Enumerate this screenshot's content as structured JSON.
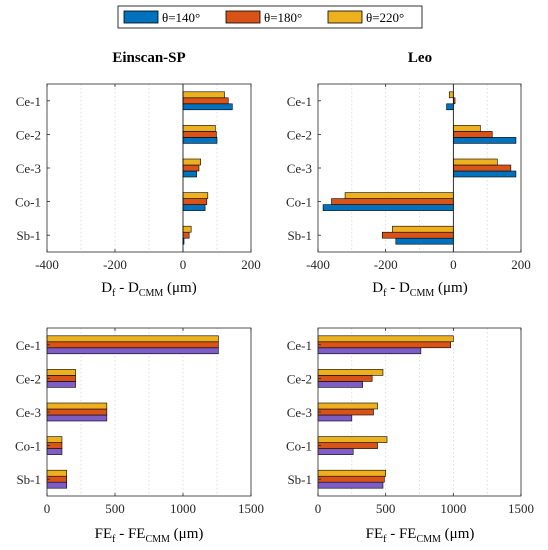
{
  "legend": {
    "items": [
      {
        "label": "θ=140°",
        "color": "#0072BD"
      },
      {
        "label": "θ=180°",
        "color": "#D95319"
      },
      {
        "label": "θ=220°",
        "color": "#EDB120"
      }
    ]
  },
  "colors": {
    "purple_series": "#7E5EC6"
  },
  "chart_data": [
    {
      "type": "bar",
      "orientation": "horizontal",
      "title": "Einscan-SP",
      "xlabel": {
        "main": "D",
        "sub1": "f",
        "mid": " - D",
        "sub2": "CMM",
        "unit": " (μm)"
      },
      "xlim": [
        -400,
        200
      ],
      "xticks": [
        -400,
        -200,
        0,
        200
      ],
      "grid": true,
      "categories": [
        "Ce-1",
        "Ce-2",
        "Ce-3",
        "Co-1",
        "Sb-1"
      ],
      "series": [
        {
          "name": "θ=140°",
          "values": [
            145,
            100,
            40,
            65,
            3
          ]
        },
        {
          "name": "θ=180°",
          "values": [
            133,
            98,
            47,
            70,
            18
          ]
        },
        {
          "name": "θ=220°",
          "values": [
            122,
            95,
            52,
            73,
            24
          ]
        }
      ]
    },
    {
      "type": "bar",
      "orientation": "horizontal",
      "title": "Leo",
      "xlabel": {
        "main": "D",
        "sub1": "f",
        "mid": " - D",
        "sub2": "CMM",
        "unit": " (μm)"
      },
      "xlim": [
        -400,
        200
      ],
      "xticks": [
        -400,
        -200,
        0,
        200
      ],
      "grid": true,
      "categories": [
        "Ce-1",
        "Ce-2",
        "Ce-3",
        "Co-1",
        "Sb-1"
      ],
      "series": [
        {
          "name": "θ=140°",
          "values": [
            -20,
            185,
            185,
            -385,
            -170
          ]
        },
        {
          "name": "θ=180°",
          "values": [
            5,
            115,
            170,
            -360,
            -210
          ]
        },
        {
          "name": "θ=220°",
          "values": [
            -12,
            80,
            130,
            -320,
            -180
          ]
        }
      ]
    },
    {
      "type": "bar",
      "orientation": "horizontal",
      "title": "",
      "xlabel": {
        "main": "FE",
        "sub1": "f",
        "mid": " - FE",
        "sub2": "CMM",
        "unit": " (μm)"
      },
      "xlim": [
        0,
        1500
      ],
      "xticks": [
        0,
        500,
        1000,
        1500
      ],
      "grid": true,
      "categories": [
        "Ce-1",
        "Ce-2",
        "Ce-3",
        "Co-1",
        "Sb-1"
      ],
      "series": [
        {
          "name": "θ=140°",
          "values": [
            1260,
            210,
            440,
            110,
            145
          ],
          "color": "#7E5EC6"
        },
        {
          "name": "θ=180°",
          "values": [
            1260,
            210,
            440,
            110,
            145
          ]
        },
        {
          "name": "θ=220°",
          "values": [
            1260,
            210,
            440,
            110,
            145
          ]
        }
      ]
    },
    {
      "type": "bar",
      "orientation": "horizontal",
      "title": "",
      "xlabel": {
        "main": "FE",
        "sub1": "f",
        "mid": " - FE",
        "sub2": "CMM",
        "unit": " (μm)"
      },
      "xlim": [
        0,
        1500
      ],
      "xticks": [
        0,
        500,
        1000,
        1500
      ],
      "grid": true,
      "categories": [
        "Ce-1",
        "Ce-2",
        "Ce-3",
        "Co-1",
        "Sb-1"
      ],
      "series": [
        {
          "name": "θ=140°",
          "values": [
            760,
            330,
            250,
            260,
            480
          ],
          "color": "#7E5EC6"
        },
        {
          "name": "θ=180°",
          "values": [
            980,
            400,
            410,
            440,
            490
          ]
        },
        {
          "name": "θ=220°",
          "values": [
            1000,
            480,
            440,
            510,
            500
          ]
        }
      ]
    }
  ]
}
